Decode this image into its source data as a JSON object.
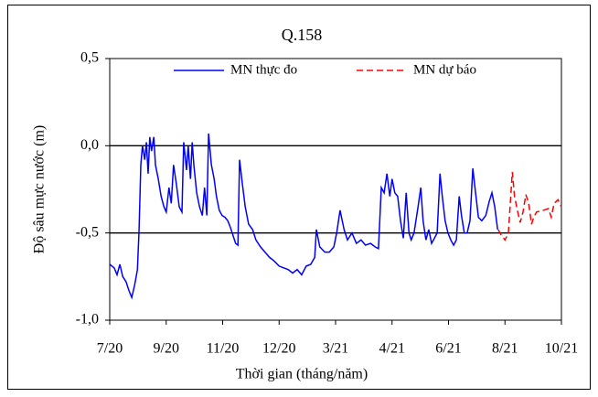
{
  "chart_data": {
    "type": "line",
    "title": "Q.158",
    "x_label": "Thời gian (tháng/năm)",
    "y_label": "Độ sâu mực nước (m)",
    "xlim": [
      0,
      8
    ],
    "xticks": [
      {
        "value": 0,
        "label": "7/20"
      },
      {
        "value": 1,
        "label": "9/20"
      },
      {
        "value": 2,
        "label": "11/20"
      },
      {
        "value": 3,
        "label": "12/20"
      },
      {
        "value": 4,
        "label": "3/21"
      },
      {
        "value": 5,
        "label": "4/21"
      },
      {
        "value": 6,
        "label": "6/21"
      },
      {
        "value": 7,
        "label": "8/21"
      },
      {
        "value": 8,
        "label": "10/21"
      }
    ],
    "ylim": [
      -1,
      0.5
    ],
    "yticks": [
      {
        "value": -1,
        "label": "-1,0"
      },
      {
        "value": -0.5,
        "label": "-0,5"
      },
      {
        "value": 0,
        "label": "0,0"
      },
      {
        "value": 0.5,
        "label": "0,5"
      }
    ],
    "grid_lines": [
      0,
      -0.5
    ],
    "legend": "top",
    "series": [
      {
        "name": "MN thực đo",
        "color": "#0000ff",
        "dash": false,
        "x": [
          0,
          0.08,
          0.13,
          0.18,
          0.23,
          0.29,
          0.34,
          0.39,
          0.44,
          0.49,
          0.52,
          0.55,
          0.58,
          0.62,
          0.65,
          0.68,
          0.71,
          0.74,
          0.78,
          0.81,
          0.86,
          0.91,
          0.96,
          1.0,
          1.05,
          1.09,
          1.13,
          1.18,
          1.23,
          1.28,
          1.31,
          1.36,
          1.39,
          1.43,
          1.46,
          1.49,
          1.54,
          1.59,
          1.64,
          1.68,
          1.72,
          1.75,
          1.8,
          1.85,
          1.89,
          1.94,
          1.99,
          2.04,
          2.09,
          2.14,
          2.19,
          2.23,
          2.27,
          2.3,
          2.35,
          2.4,
          2.46,
          2.53,
          2.59,
          2.67,
          2.75,
          2.83,
          2.91,
          3.0,
          3.08,
          3.16,
          3.24,
          3.32,
          3.4,
          3.48,
          3.56,
          3.63,
          3.66,
          3.72,
          3.81,
          3.89,
          3.97,
          4.02,
          4.08,
          4.15,
          4.21,
          4.29,
          4.37,
          4.45,
          4.53,
          4.62,
          4.7,
          4.76,
          4.81,
          4.86,
          4.91,
          4.96,
          5.0,
          5.05,
          5.1,
          5.15,
          5.2,
          5.25,
          5.3,
          5.34,
          5.39,
          5.46,
          5.51,
          5.55,
          5.6,
          5.65,
          5.7,
          5.75,
          5.8,
          5.85,
          5.89,
          5.94,
          5.99,
          6.04,
          6.09,
          6.14,
          6.19,
          6.23,
          6.28,
          6.33,
          6.38,
          6.43,
          6.48,
          6.53,
          6.59,
          6.66,
          6.72,
          6.77,
          6.82,
          6.87
        ],
        "values": [
          -0.68,
          -0.7,
          -0.74,
          -0.68,
          -0.75,
          -0.78,
          -0.83,
          -0.87,
          -0.8,
          -0.71,
          -0.48,
          -0.11,
          0.0,
          -0.08,
          0.02,
          -0.16,
          0.05,
          -0.03,
          0.05,
          -0.11,
          -0.19,
          -0.29,
          -0.35,
          -0.38,
          -0.24,
          -0.33,
          -0.11,
          -0.22,
          -0.35,
          -0.38,
          0.02,
          -0.14,
          0.0,
          -0.19,
          0.02,
          -0.11,
          -0.27,
          -0.35,
          -0.4,
          -0.24,
          -0.4,
          0.07,
          -0.11,
          -0.19,
          -0.29,
          -0.37,
          -0.4,
          -0.41,
          -0.43,
          -0.47,
          -0.52,
          -0.56,
          -0.57,
          -0.08,
          -0.22,
          -0.35,
          -0.45,
          -0.48,
          -0.54,
          -0.58,
          -0.61,
          -0.64,
          -0.66,
          -0.69,
          -0.7,
          -0.71,
          -0.73,
          -0.71,
          -0.74,
          -0.69,
          -0.68,
          -0.64,
          -0.48,
          -0.58,
          -0.61,
          -0.61,
          -0.58,
          -0.5,
          -0.37,
          -0.48,
          -0.54,
          -0.5,
          -0.56,
          -0.54,
          -0.57,
          -0.56,
          -0.58,
          -0.59,
          -0.24,
          -0.27,
          -0.16,
          -0.29,
          -0.19,
          -0.27,
          -0.29,
          -0.43,
          -0.53,
          -0.27,
          -0.5,
          -0.54,
          -0.5,
          -0.35,
          -0.24,
          -0.43,
          -0.54,
          -0.48,
          -0.56,
          -0.53,
          -0.5,
          -0.16,
          -0.29,
          -0.43,
          -0.5,
          -0.54,
          -0.57,
          -0.54,
          -0.29,
          -0.4,
          -0.5,
          -0.5,
          -0.43,
          -0.13,
          -0.27,
          -0.41,
          -0.43,
          -0.4,
          -0.32,
          -0.27,
          -0.35,
          -0.48
        ]
      },
      {
        "name": "MN dự báo",
        "color": "#ff0000",
        "dash": true,
        "x": [
          6.88,
          6.93,
          7.0,
          7.06,
          7.13,
          7.17,
          7.22,
          7.27,
          7.32,
          7.37,
          7.42,
          7.47,
          7.51,
          7.56,
          7.68,
          7.77,
          7.82,
          7.87,
          7.94,
          8.0
        ],
        "values": [
          -0.48,
          -0.51,
          -0.54,
          -0.5,
          -0.15,
          -0.29,
          -0.37,
          -0.44,
          -0.38,
          -0.28,
          -0.33,
          -0.45,
          -0.41,
          -0.38,
          -0.37,
          -0.36,
          -0.41,
          -0.33,
          -0.31,
          -0.35
        ]
      }
    ]
  }
}
